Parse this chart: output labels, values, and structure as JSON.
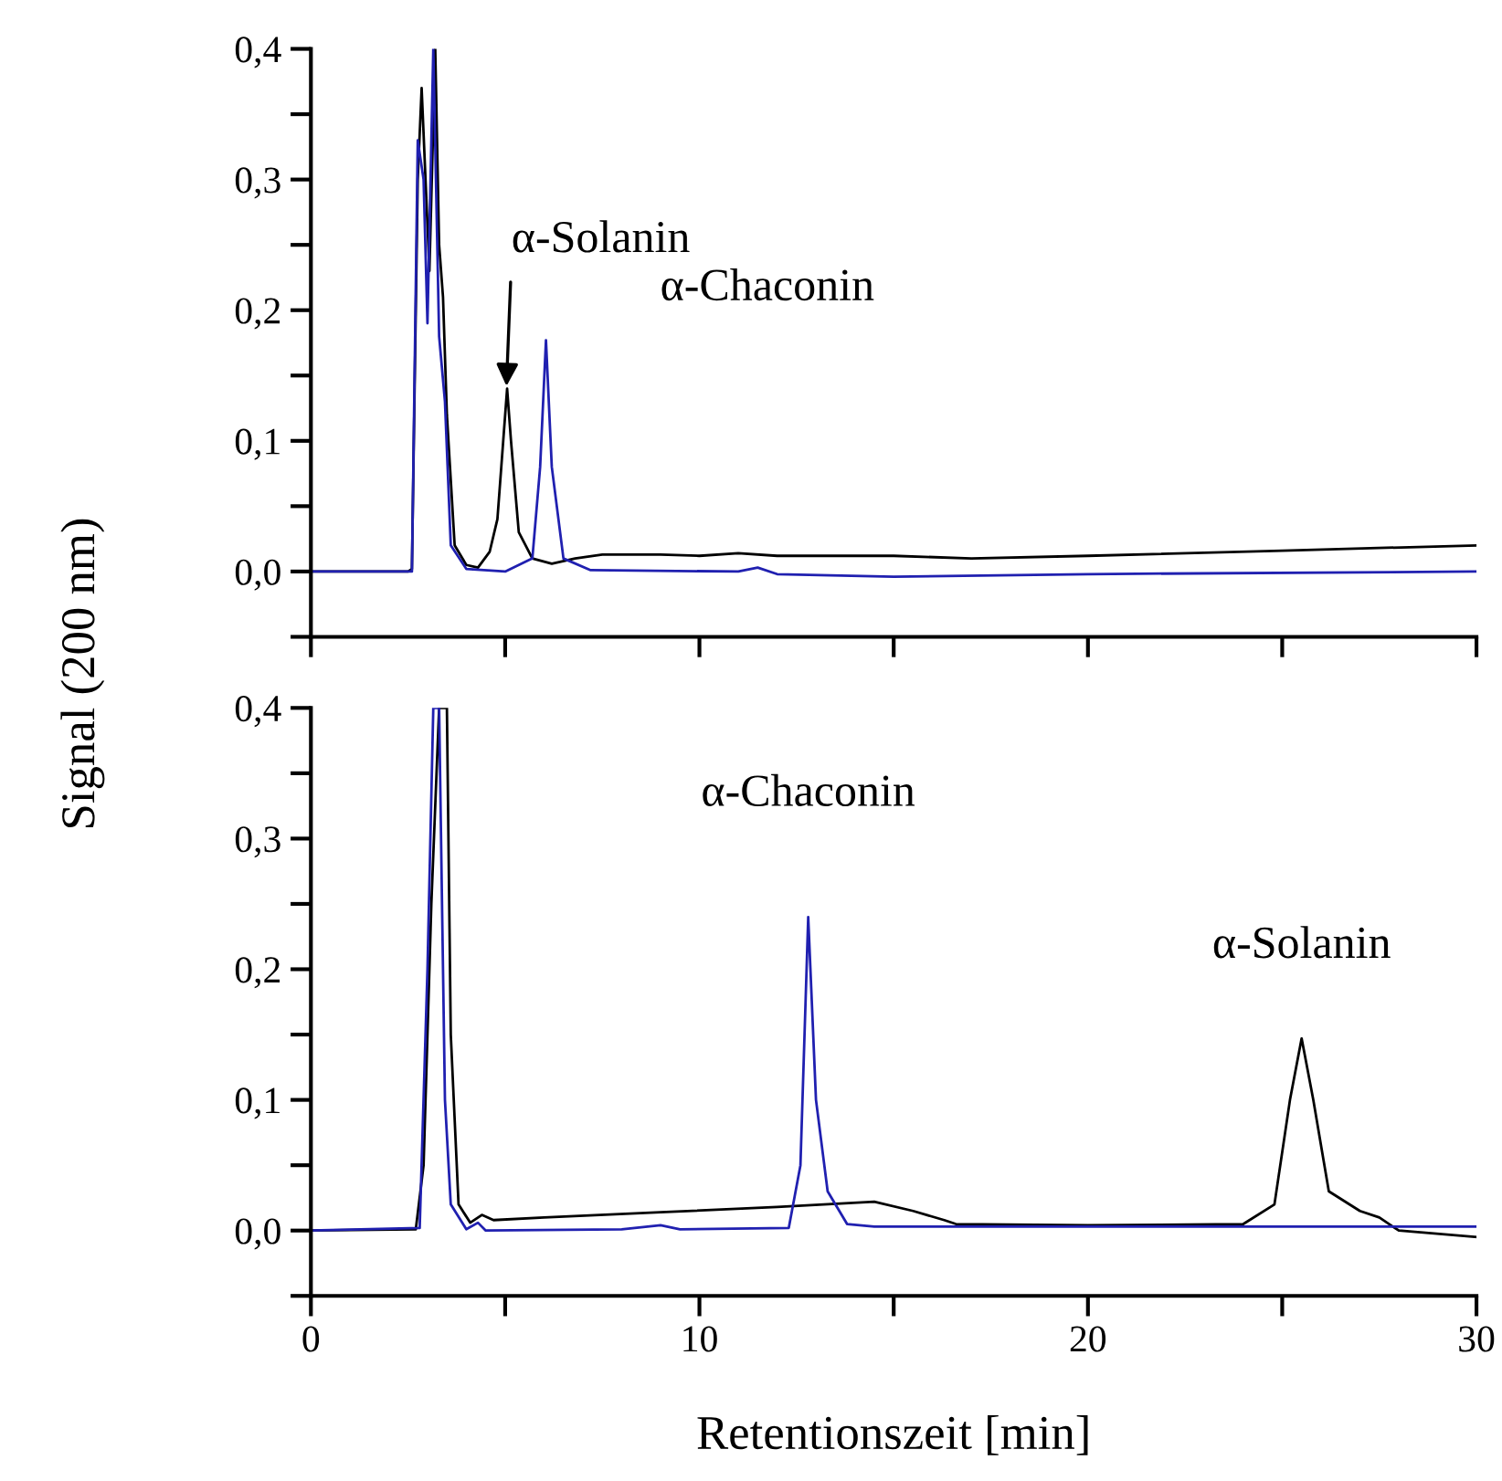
{
  "chart_data": [
    {
      "type": "line",
      "ylabel": "Signal (200 nm)",
      "xlim": [
        0,
        30
      ],
      "ylim": [
        -0.05,
        0.4
      ],
      "xticks": [
        {
          "value": 0,
          "label": null
        },
        {
          "value": 5,
          "label": null
        },
        {
          "value": 10,
          "label": null
        },
        {
          "value": 15,
          "label": null
        },
        {
          "value": 20,
          "label": null
        },
        {
          "value": 25,
          "label": null
        },
        {
          "value": 30,
          "label": null
        }
      ],
      "yticks": [
        {
          "value": -0.05,
          "label": null
        },
        {
          "value": 0,
          "label": "0,0"
        },
        {
          "value": 0.05,
          "label": null
        },
        {
          "value": 0.1,
          "label": "0,1"
        },
        {
          "value": 0.15,
          "label": null
        },
        {
          "value": 0.2,
          "label": "0,2"
        },
        {
          "value": 0.25,
          "label": null
        },
        {
          "value": 0.3,
          "label": "0,3"
        },
        {
          "value": 0.35,
          "label": null
        },
        {
          "value": 0.4,
          "label": "0,4"
        }
      ],
      "tick_labels": "y",
      "grid": false,
      "legend": false,
      "marker": "none",
      "line_style": "solid",
      "series": [
        {
          "color": "#000000",
          "x": [
            0,
            2.5,
            2.6,
            2.75,
            2.85,
            2.95,
            3.05,
            3.2,
            3.3,
            3.4,
            3.5,
            3.7,
            4.0,
            4.3,
            4.6,
            4.8,
            4.95,
            5.05,
            5.15,
            5.35,
            5.7,
            6.2,
            6.8,
            7.5,
            9,
            10,
            11,
            12,
            15,
            17,
            20,
            25,
            30
          ],
          "values": [
            0,
            0,
            0.002,
            0.3,
            0.37,
            0.3,
            0.23,
            0.4,
            0.25,
            0.21,
            0.12,
            0.02,
            0.005,
            0.003,
            0.015,
            0.04,
            0.1,
            0.14,
            0.1,
            0.03,
            0.01,
            0.006,
            0.01,
            0.013,
            0.013,
            0.012,
            0.014,
            0.012,
            0.012,
            0.01,
            0.012,
            0.016,
            0.02
          ]
        },
        {
          "color": "#2020b0",
          "x": [
            0,
            2.6,
            2.75,
            2.9,
            3.0,
            3.15,
            3.3,
            3.45,
            3.6,
            4,
            5,
            5.7,
            5.9,
            6.05,
            6.2,
            6.5,
            7.2,
            11,
            11.5,
            12,
            15,
            20,
            30
          ],
          "values": [
            0,
            0,
            0.33,
            0.3,
            0.19,
            0.4,
            0.18,
            0.13,
            0.02,
            0.002,
            0,
            0.01,
            0.08,
            0.177,
            0.08,
            0.01,
            0.001,
            0,
            0.003,
            -0.002,
            -0.004,
            -0.002,
            0
          ]
        }
      ],
      "annotations": [
        {
          "text": "α-Solanin",
          "x": 5.03,
          "y": 0.14
        },
        {
          "text": "α-Chaconin",
          "x": 6.05,
          "y": 0.177
        }
      ]
    },
    {
      "type": "line",
      "xlabel": "Retentionszeit [min]",
      "xlim": [
        0,
        30
      ],
      "ylim": [
        -0.05,
        0.4
      ],
      "xticks": [
        0,
        {
          "value": 5,
          "label": null
        },
        10,
        {
          "value": 15,
          "label": null
        },
        20,
        {
          "value": 25,
          "label": null
        },
        30
      ],
      "yticks": [
        {
          "value": -0.05,
          "label": null
        },
        {
          "value": 0,
          "label": "0,0"
        },
        {
          "value": 0.05,
          "label": null
        },
        {
          "value": 0.1,
          "label": "0,1"
        },
        {
          "value": 0.15,
          "label": null
        },
        {
          "value": 0.2,
          "label": "0,2"
        },
        {
          "value": 0.25,
          "label": null
        },
        {
          "value": 0.3,
          "label": "0,3"
        },
        {
          "value": 0.35,
          "label": null
        },
        {
          "value": 0.4,
          "label": "0,4"
        }
      ],
      "grid": false,
      "legend": false,
      "marker": "none",
      "line_style": "solid",
      "series": [
        {
          "color": "#000000",
          "x": [
            0,
            2.7,
            2.9,
            3.1,
            3.3,
            3.5,
            3.6,
            3.8,
            4.1,
            4.4,
            4.7,
            6,
            9,
            12,
            14.5,
            15.5,
            16.3,
            16.6,
            20,
            24,
            24.8,
            25.2,
            25.5,
            25.8,
            26.2,
            27,
            27.5,
            28,
            30
          ],
          "values": [
            0,
            0.001,
            0.05,
            0.25,
            0.4,
            0.4,
            0.15,
            0.02,
            0.006,
            0.012,
            0.008,
            0.01,
            0.014,
            0.018,
            0.022,
            0.015,
            0.008,
            0.005,
            0.004,
            0.005,
            0.02,
            0.1,
            0.147,
            0.1,
            0.03,
            0.015,
            0.01,
            0,
            -0.005
          ]
        },
        {
          "color": "#2020b0",
          "x": [
            0,
            2.8,
            3.0,
            3.15,
            3.3,
            3.45,
            3.6,
            4.0,
            4.3,
            4.5,
            8,
            9,
            9.5,
            12.3,
            12.6,
            12.8,
            13.0,
            13.3,
            13.8,
            14.5,
            30
          ],
          "values": [
            0,
            0.002,
            0.2,
            0.4,
            0.4,
            0.1,
            0.02,
            0.001,
            0.006,
            0,
            0.001,
            0.004,
            0.001,
            0.002,
            0.05,
            0.24,
            0.1,
            0.03,
            0.005,
            0.003,
            0.003
          ]
        }
      ],
      "annotations": [
        {
          "text": "α-Chaconin",
          "x": 12.8,
          "y": 0.24
        },
        {
          "text": "α-Solanin",
          "x": 25.5,
          "y": 0.147
        }
      ]
    }
  ]
}
